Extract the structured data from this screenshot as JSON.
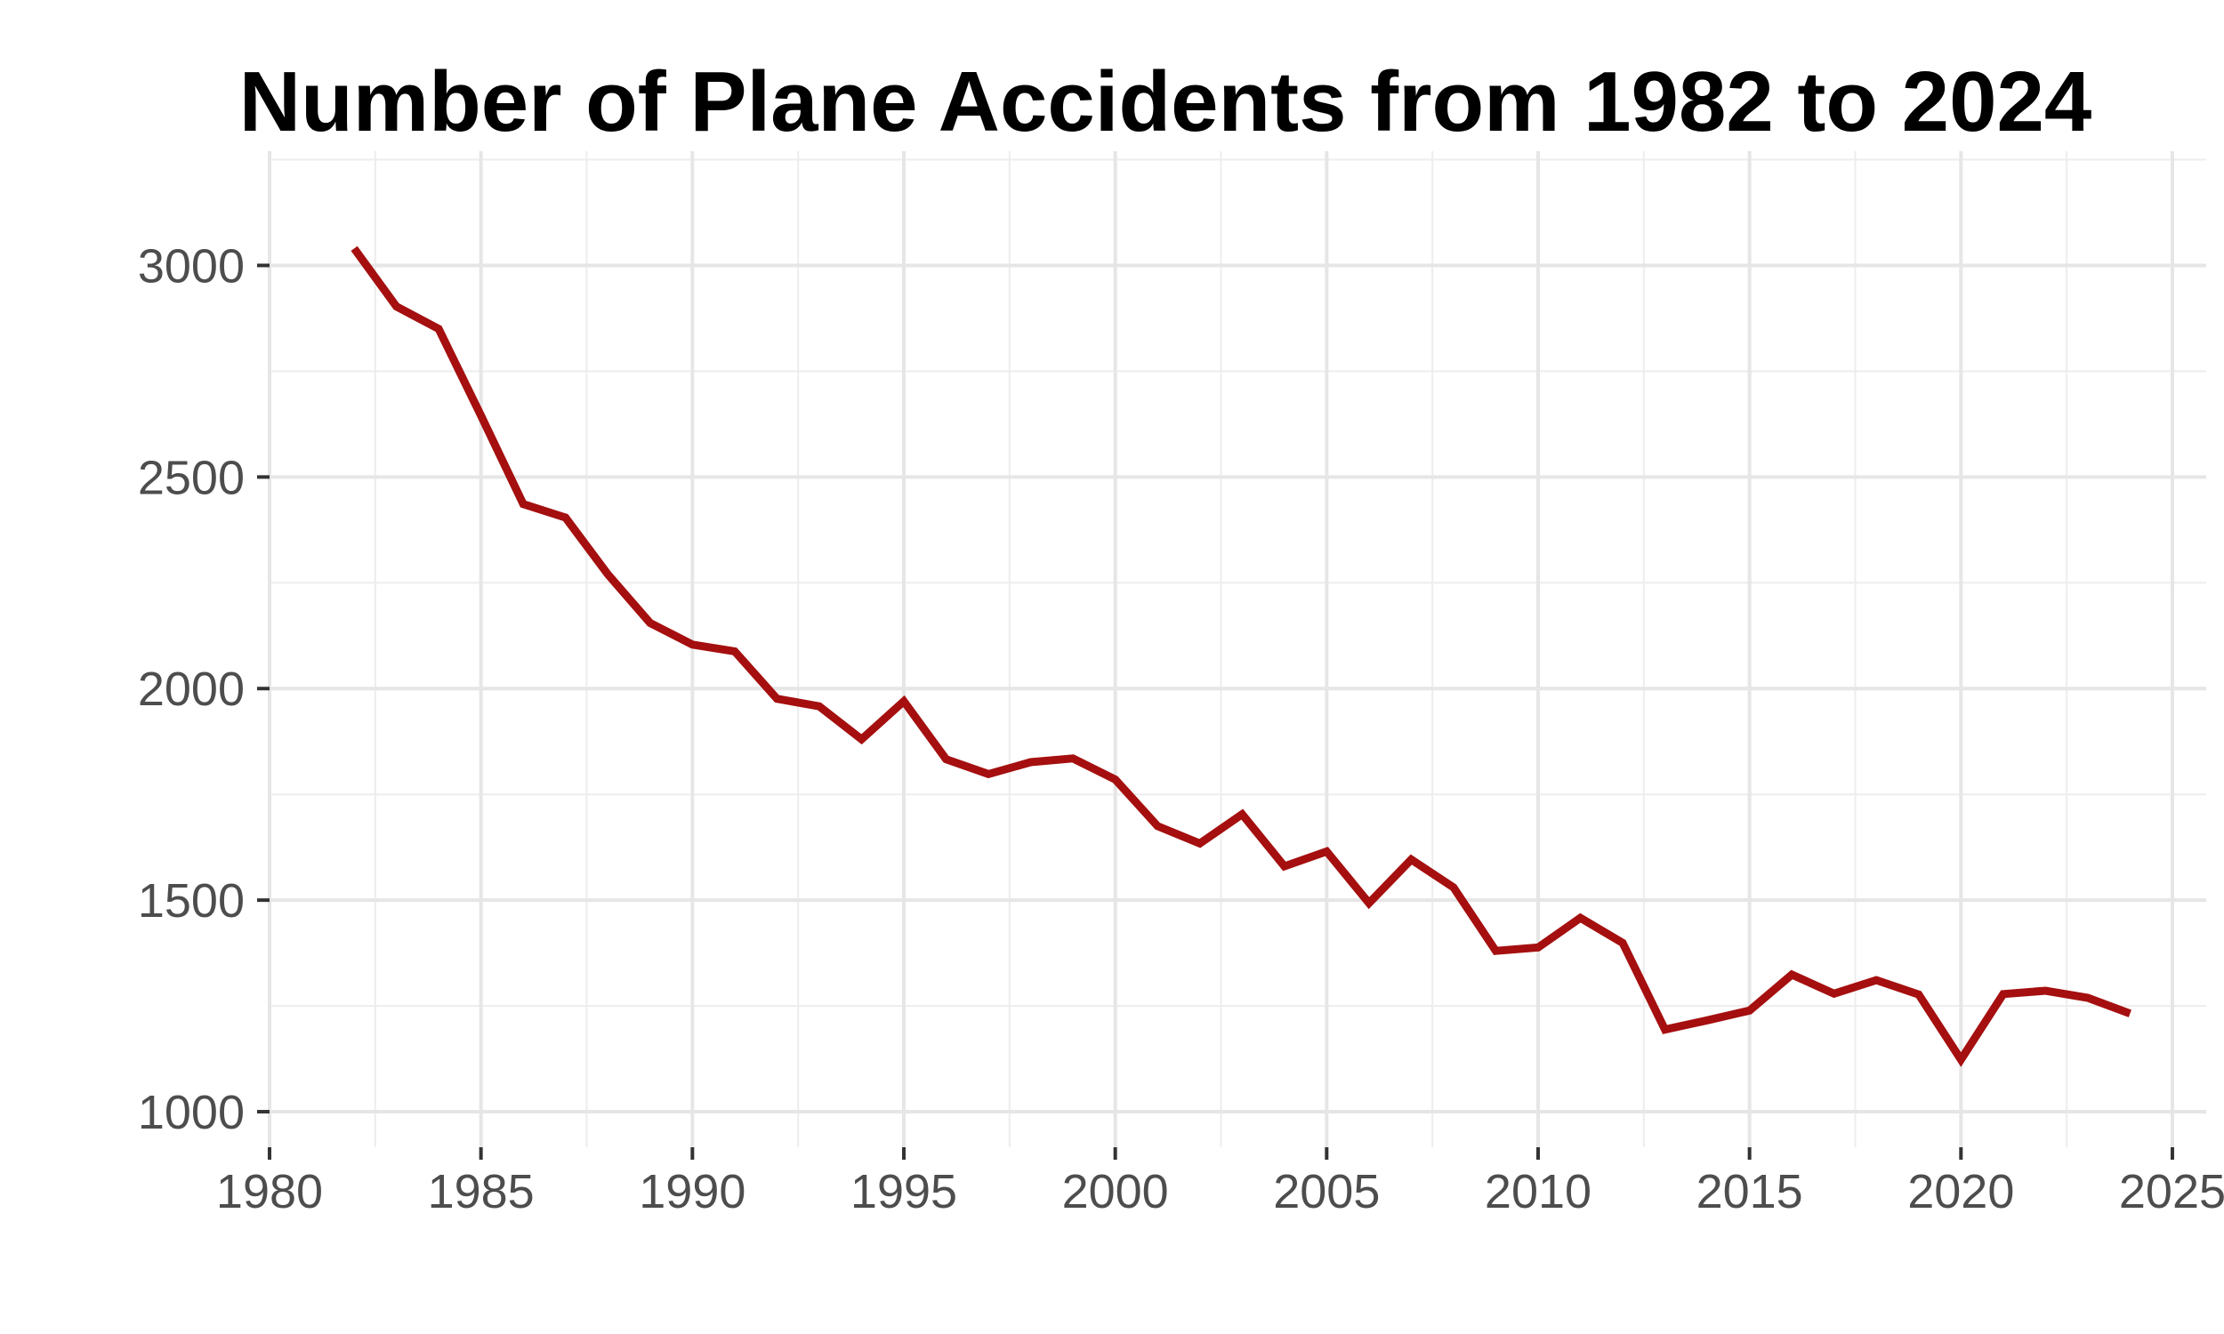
{
  "chart_data": {
    "type": "line",
    "title": "Number of Plane Accidents from 1982 to 2024",
    "xlabel": "",
    "ylabel": "",
    "xlim": [
      1980,
      2025
    ],
    "ylim": [
      1000,
      3000
    ],
    "x_ticks": [
      1980,
      1985,
      1990,
      1995,
      2000,
      2005,
      2010,
      2015,
      2020,
      2025
    ],
    "y_ticks": [
      1000,
      1500,
      2000,
      2500,
      3000
    ],
    "grid": true,
    "line_color": "#a50f0f",
    "series": [
      {
        "x": [
          1982,
          1983,
          1984,
          1985,
          1986,
          1987,
          1988,
          1989,
          1990,
          1991,
          1992,
          1993,
          1994,
          1995,
          1996,
          1997,
          1998,
          1999,
          2000,
          2001,
          2002,
          2003,
          2004,
          2005,
          2006,
          2007,
          2008,
          2009,
          2010,
          2011,
          2012,
          2013,
          2014,
          2015,
          2016,
          2017,
          2018,
          2019,
          2020,
          2021,
          2022,
          2023,
          2024
        ],
        "values": [
          3040,
          2903,
          2850,
          2645,
          2436,
          2404,
          2270,
          2155,
          2104,
          2088,
          1976,
          1958,
          1880,
          1970,
          1833,
          1798,
          1826,
          1835,
          1785,
          1675,
          1634,
          1703,
          1580,
          1615,
          1493,
          1596,
          1530,
          1380,
          1388,
          1458,
          1399,
          1194,
          1216,
          1239,
          1324,
          1279,
          1311,
          1277,
          1123,
          1278,
          1286,
          1269,
          1232
        ]
      }
    ]
  }
}
